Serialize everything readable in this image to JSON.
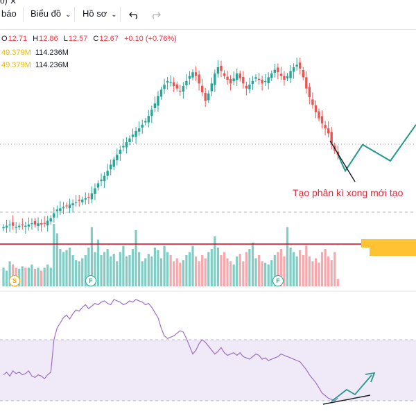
{
  "toolbar": {
    "partial_left": "ồ) ⨯",
    "bao_label": "báo",
    "chart_label": "Biểu đồ",
    "profile_label": "Hồ sơ",
    "undo_icon": "undo-icon",
    "redo_icon": "redo-icon"
  },
  "legend": {
    "open_key": "O",
    "open": "12.71",
    "high_key": "H",
    "high": "12.86",
    "low_key": "L",
    "low": "12.57",
    "close_key": "C",
    "close": "12.67",
    "change": "+0.10 (+0.76%)"
  },
  "volume_rows": [
    {
      "a": "49.379M",
      "b": "114.236M"
    },
    {
      "a": "49.379M",
      "b": "114.236M"
    }
  ],
  "annotation": "Tạo phân kì xong mới tạo",
  "markers": [
    {
      "letter": "S",
      "color": "#f7a600"
    },
    {
      "letter": "F",
      "color": "#22ab94"
    },
    {
      "letter": "F",
      "color": "#22ab94"
    }
  ],
  "colors": {
    "up": "#26a69a",
    "down": "#ef5350",
    "up_vol": "#7fcdc4",
    "down_vol": "#f5a9ad",
    "rsi": "#9c6fc7",
    "rsi_band": "#f0e9f8",
    "support": "#d0021b",
    "zone": "#ffc233",
    "annotation": "#e0283a",
    "projection": "#22998c",
    "divergence": "#131722"
  },
  "chart_data": {
    "type": "candlestick",
    "note_price_range": [
      10.0,
      18.5
    ],
    "prices": [
      11.85,
      11.9,
      11.95,
      11.9,
      11.85,
      11.9,
      11.95,
      11.9,
      11.95,
      12.0,
      11.95,
      12.0,
      11.95,
      12.0,
      12.1,
      12.2,
      12.4,
      12.55,
      12.6,
      12.65,
      12.7,
      12.75,
      12.8,
      12.85,
      12.9,
      12.95,
      13.0,
      13.05,
      13.2,
      13.4,
      13.6,
      13.75,
      13.9,
      14.1,
      14.35,
      14.55,
      14.75,
      14.95,
      15.1,
      15.25,
      15.4,
      15.55,
      15.7,
      15.8,
      15.95,
      16.1,
      16.3,
      16.55,
      16.8,
      17.1,
      17.35,
      17.55,
      17.7,
      17.65,
      17.5,
      17.4,
      17.3,
      17.5,
      17.7,
      17.9,
      18.05,
      17.9,
      17.6,
      17.25,
      16.9,
      17.2,
      17.6,
      18.0,
      18.25,
      18.1,
      17.9,
      17.75,
      17.6,
      17.8,
      18.0,
      17.8,
      17.6,
      17.4,
      17.55,
      17.7,
      17.85,
      17.75,
      17.6,
      17.7,
      17.85,
      18.0,
      18.15,
      18.05,
      17.9,
      17.75,
      17.9,
      18.1,
      18.25,
      18.35,
      18.2,
      17.85,
      17.4,
      17.05,
      16.75,
      16.45,
      16.2,
      16.0,
      15.8,
      15.6,
      15.2,
      14.9,
      14.75
    ],
    "projection_prices": [
      14.75,
      14.1,
      15.15,
      14.5,
      15.95
    ],
    "volumes": [
      0.3,
      0.25,
      0.4,
      0.35,
      0.3,
      0.28,
      0.32,
      0.3,
      0.3,
      0.35,
      0.28,
      0.3,
      0.25,
      0.3,
      0.35,
      0.3,
      1.0,
      0.85,
      0.6,
      0.55,
      0.58,
      0.62,
      0.5,
      0.42,
      0.4,
      0.45,
      0.5,
      0.62,
      0.95,
      0.55,
      0.75,
      0.5,
      0.55,
      0.6,
      0.48,
      0.52,
      0.4,
      0.55,
      0.65,
      0.48,
      0.5,
      0.6,
      0.9,
      0.55,
      0.4,
      0.45,
      0.52,
      0.48,
      0.62,
      0.58,
      0.45,
      0.65,
      0.55,
      0.5,
      0.4,
      0.45,
      0.38,
      0.42,
      0.5,
      0.55,
      0.65,
      0.48,
      0.4,
      0.5,
      0.45,
      0.55,
      0.6,
      0.8,
      0.62,
      0.5,
      0.55,
      0.45,
      0.4,
      0.35,
      0.48,
      0.52,
      0.4,
      0.55,
      0.6,
      0.7,
      0.45,
      0.5,
      0.4,
      0.38,
      0.35,
      0.42,
      0.5,
      0.55,
      0.6,
      0.48,
      0.95,
      0.62,
      0.55,
      0.48,
      0.58,
      0.5,
      0.65,
      0.48,
      0.4,
      0.45,
      0.38,
      0.55,
      0.6,
      0.48,
      0.42,
      0.55,
      0.12
    ],
    "rsi": [
      28,
      30,
      27,
      31,
      29,
      30,
      28,
      29,
      31,
      27,
      26,
      28,
      27,
      25,
      28,
      30,
      55,
      64,
      68,
      72,
      74,
      71,
      75,
      78,
      77,
      80,
      82,
      79,
      81,
      83,
      82,
      84,
      85,
      83,
      82,
      86,
      85,
      84,
      82,
      83,
      85,
      84,
      86,
      85,
      84,
      82,
      83,
      80,
      76,
      72,
      64,
      58,
      56,
      57,
      58,
      60,
      62,
      61,
      56,
      50,
      44,
      47,
      52,
      55,
      53,
      50,
      47,
      44,
      46,
      49,
      45,
      43,
      44,
      45,
      43,
      45,
      42,
      41,
      40,
      42,
      44,
      43,
      40,
      41,
      39,
      40,
      41,
      42,
      44,
      43,
      42,
      41,
      40,
      39,
      38,
      35,
      32,
      28,
      25,
      22,
      18,
      14,
      12,
      10,
      9,
      8,
      10
    ],
    "rsi_band": [
      30,
      70
    ]
  }
}
